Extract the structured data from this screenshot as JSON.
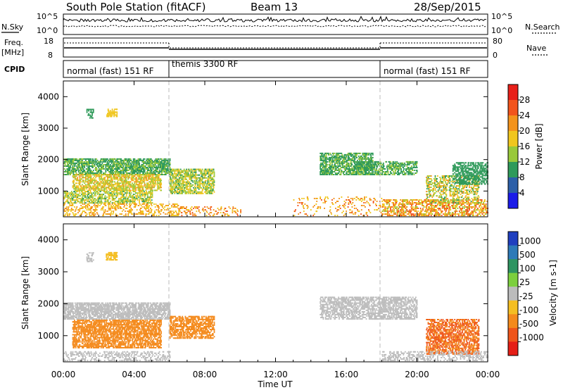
{
  "header": {
    "station": "South Pole Station (fitACF)",
    "beam": "Beam 13",
    "date": "28/Sep/2015"
  },
  "top_panels": {
    "nsky_label": "N.Sky",
    "nsearch_label": "N.Search",
    "nsky_ticks": [
      "10^5",
      "10^0"
    ],
    "nsearch_ticks": [
      "10^5",
      "10^0"
    ],
    "freq_label": "Freq.",
    "freq_unit": "[MHz]",
    "freq_ticks": [
      "18",
      "8"
    ],
    "nave_label": "Nave",
    "nave_ticks": [
      "80",
      "0"
    ],
    "cpid_label": "CPID",
    "cpid_segments": [
      {
        "name": "normal (fast) 151 RF",
        "start_hour": 0,
        "end_hour": 6
      },
      {
        "name": "themis 3300 RF",
        "start_hour": 6,
        "end_hour": 18
      },
      {
        "name": "normal (fast) 151 RF",
        "start_hour": 18,
        "end_hour": 24
      }
    ]
  },
  "power_colorbar": {
    "label": "Power [dB]",
    "ticks": [
      "28",
      "24",
      "20",
      "16",
      "12",
      "8",
      "4"
    ],
    "colors": [
      "#e8201a",
      "#f2541c",
      "#f3931c",
      "#f0c61e",
      "#99c93a",
      "#2f9a5a",
      "#2c5fa8",
      "#1b1be8"
    ]
  },
  "velocity_colorbar": {
    "label": "Velocity [m s-1]",
    "ticks": [
      "1000",
      "500",
      "100",
      "25",
      "-25",
      "-100",
      "-500",
      "-1000"
    ],
    "colors": [
      "#1f3fbf",
      "#2d7ab8",
      "#2e9461",
      "#7ccf3e",
      "#bcbcbc",
      "#f4be22",
      "#f48a1c",
      "#ef551b",
      "#e51f17"
    ]
  },
  "chart_data": [
    {
      "type": "heatmap",
      "title": "",
      "xlabel": "",
      "ylabel": "Slant Range [km]",
      "xlim": [
        0,
        24
      ],
      "ylim": [
        180,
        4500
      ],
      "x_ticks": [
        "00:00",
        "04:00",
        "08:00",
        "12:00",
        "16:00",
        "20:00",
        "00:00"
      ],
      "y_ticks": [
        "1000",
        "2000",
        "3000",
        "4000"
      ],
      "colorbar": "Power [dB]",
      "scatter_regions": [
        {
          "x": [
            0.0,
            6.0
          ],
          "y": [
            1500,
            2000
          ],
          "values": [
            8,
            14
          ],
          "density": 0.55
        },
        {
          "x": [
            0.5,
            5.5
          ],
          "y": [
            1000,
            1500
          ],
          "values": [
            12,
            22
          ],
          "density": 0.5
        },
        {
          "x": [
            0.0,
            5.0
          ],
          "y": [
            600,
            1000
          ],
          "values": [
            10,
            20
          ],
          "density": 0.4
        },
        {
          "x": [
            0.0,
            6.5
          ],
          "y": [
            200,
            600
          ],
          "values": [
            16,
            24
          ],
          "density": 0.25
        },
        {
          "x": [
            6.0,
            8.5
          ],
          "y": [
            900,
            1700
          ],
          "values": [
            10,
            20
          ],
          "density": 0.5
        },
        {
          "x": [
            6.5,
            10.0
          ],
          "y": [
            200,
            500
          ],
          "values": [
            18,
            26
          ],
          "density": 0.15
        },
        {
          "x": [
            14.5,
            17.5
          ],
          "y": [
            1500,
            2200
          ],
          "values": [
            8,
            14
          ],
          "density": 0.5
        },
        {
          "x": [
            16.5,
            20.0
          ],
          "y": [
            1500,
            1950
          ],
          "values": [
            8,
            14
          ],
          "density": 0.45
        },
        {
          "x": [
            13.0,
            18.0
          ],
          "y": [
            200,
            800
          ],
          "values": [
            16,
            26
          ],
          "density": 0.1
        },
        {
          "x": [
            18.0,
            24.0
          ],
          "y": [
            200,
            700
          ],
          "values": [
            14,
            28
          ],
          "density": 0.4
        },
        {
          "x": [
            20.5,
            23.5
          ],
          "y": [
            600,
            1500
          ],
          "values": [
            10,
            22
          ],
          "density": 0.35
        },
        {
          "x": [
            22.0,
            24.0
          ],
          "y": [
            1200,
            1900
          ],
          "values": [
            8,
            12
          ],
          "density": 0.45
        },
        {
          "x": [
            1.3,
            1.7
          ],
          "y": [
            3300,
            3600
          ],
          "values": [
            8,
            12
          ],
          "density": 0.4
        },
        {
          "x": [
            2.4,
            3.0
          ],
          "y": [
            3350,
            3600
          ],
          "values": [
            16,
            20
          ],
          "density": 0.5
        }
      ]
    },
    {
      "type": "heatmap",
      "title": "",
      "xlabel": "Time UT",
      "ylabel": "Slant Range [km]",
      "xlim": [
        0,
        24
      ],
      "ylim": [
        180,
        4500
      ],
      "x_ticks": [
        "00:00",
        "04:00",
        "08:00",
        "12:00",
        "16:00",
        "20:00",
        "00:00"
      ],
      "y_ticks": [
        "1000",
        "2000",
        "3000",
        "4000"
      ],
      "colorbar": "Velocity [m s-1]",
      "scatter_regions": [
        {
          "x": [
            0.0,
            6.0
          ],
          "y": [
            1500,
            2000
          ],
          "values": [
            -25,
            25
          ],
          "density": 0.55
        },
        {
          "x": [
            0.5,
            5.5
          ],
          "y": [
            600,
            1500
          ],
          "values": [
            -500,
            -100
          ],
          "density": 0.55
        },
        {
          "x": [
            0.0,
            6.0
          ],
          "y": [
            200,
            500
          ],
          "values": [
            -25,
            25
          ],
          "density": 0.25
        },
        {
          "x": [
            6.0,
            8.5
          ],
          "y": [
            900,
            1600
          ],
          "values": [
            -500,
            -100
          ],
          "density": 0.5
        },
        {
          "x": [
            14.5,
            20.0
          ],
          "y": [
            1500,
            2200
          ],
          "values": [
            -25,
            25
          ],
          "density": 0.5
        },
        {
          "x": [
            20.5,
            23.5
          ],
          "y": [
            400,
            1500
          ],
          "values": [
            -1000,
            -100
          ],
          "density": 0.5
        },
        {
          "x": [
            18.0,
            24.0
          ],
          "y": [
            200,
            500
          ],
          "values": [
            -25,
            25
          ],
          "density": 0.3
        },
        {
          "x": [
            1.3,
            1.7
          ],
          "y": [
            3300,
            3600
          ],
          "values": [
            -25,
            25
          ],
          "density": 0.4
        },
        {
          "x": [
            2.4,
            3.0
          ],
          "y": [
            3350,
            3600
          ],
          "values": [
            -100,
            -25
          ],
          "density": 0.5
        }
      ]
    }
  ]
}
